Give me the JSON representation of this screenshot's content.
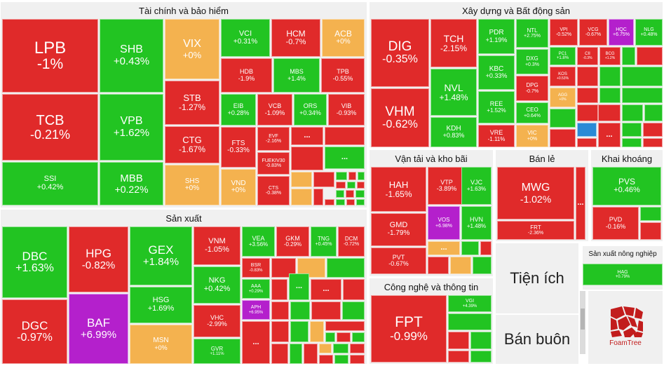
{
  "colors": {
    "up": "#22c422",
    "down": "#e02a2a",
    "reference": "#f4b24f",
    "ceiling": "#b420cc",
    "floor": "#2a8ad6"
  },
  "sectors": {
    "finance": "Tài chính và bảo hiểm",
    "realestate": "Xây dựng và Bất động sản",
    "manufacturing": "Sản xuất",
    "transport": "Vận tải và kho bãi",
    "retail": "Bán lẻ",
    "mining": "Khai khoáng",
    "tech": "Công nghệ và thông tin",
    "utilities": "Tiện ích",
    "wholesale": "Bán buôn",
    "agri": "Sản xuất nông nghiệp"
  },
  "more_label": "...",
  "logo_text": "FoamTree",
  "stocks": {
    "LPB": {
      "t": "LPB",
      "p": "-1%"
    },
    "TCB": {
      "t": "TCB",
      "p": "-0.21%"
    },
    "SSI": {
      "t": "SSI",
      "p": "+0.42%"
    },
    "SHB": {
      "t": "SHB",
      "p": "+0.43%"
    },
    "VPB": {
      "t": "VPB",
      "p": "+1.62%"
    },
    "MBB": {
      "t": "MBB",
      "p": "+0.22%"
    },
    "VIX": {
      "t": "VIX",
      "p": "+0%"
    },
    "STB": {
      "t": "STB",
      "p": "-1.27%"
    },
    "CTG": {
      "t": "CTG",
      "p": "-1.67%"
    },
    "SHS": {
      "t": "SHS",
      "p": "+0%"
    },
    "VCI": {
      "t": "VCI",
      "p": "+0.31%"
    },
    "HCM": {
      "t": "HCM",
      "p": "-0.7%"
    },
    "ACB": {
      "t": "ACB",
      "p": "+0%"
    },
    "HDB": {
      "t": "HDB",
      "p": "-1.9%"
    },
    "MBS": {
      "t": "MBS",
      "p": "+1.4%"
    },
    "TPB": {
      "t": "TPB",
      "p": "-0.55%"
    },
    "EIB": {
      "t": "EIB",
      "p": "+0.28%"
    },
    "VCB": {
      "t": "VCB",
      "p": "-1.09%"
    },
    "ORS": {
      "t": "ORS",
      "p": "+0.34%"
    },
    "VIB": {
      "t": "VIB",
      "p": "-0.93%"
    },
    "FTS": {
      "t": "FTS",
      "p": "-0.33%"
    },
    "EVF": {
      "t": "EVF",
      "p": "-2.16%"
    },
    "FUEKIV30": {
      "t": "FUEKIV30",
      "p": "-0.83%"
    },
    "VND": {
      "t": "VND",
      "p": "+0%"
    },
    "CTS": {
      "t": "CTS",
      "p": "-0.38%"
    },
    "DIG": {
      "t": "DIG",
      "p": "-0.35%"
    },
    "VHM": {
      "t": "VHM",
      "p": "-0.62%"
    },
    "TCH": {
      "t": "TCH",
      "p": "-2.15%"
    },
    "NVL": {
      "t": "NVL",
      "p": "+1.48%"
    },
    "KDH": {
      "t": "KDH",
      "p": "+0.83%"
    },
    "PDR": {
      "t": "PDR",
      "p": "+1.19%"
    },
    "KBC": {
      "t": "KBC",
      "p": "+0.33%"
    },
    "REE": {
      "t": "REE",
      "p": "+1.52%"
    },
    "VRE": {
      "t": "VRE",
      "p": "-1.11%"
    },
    "NTL": {
      "t": "NTL",
      "p": "+2.75%"
    },
    "DXG": {
      "t": "DXG",
      "p": "+0.3%"
    },
    "DPG": {
      "t": "DPG",
      "p": "-0.7%"
    },
    "CEO": {
      "t": "CEO",
      "p": "+0.64%"
    },
    "VIC": {
      "t": "VIC",
      "p": "+0%"
    },
    "VPI": {
      "t": "VPI",
      "p": "-0.52%"
    },
    "VCG": {
      "t": "VCG",
      "p": "-0.67%"
    },
    "HQC": {
      "t": "HQC",
      "p": "+6.75%"
    },
    "NLG": {
      "t": "NLG",
      "p": "+0.48%"
    },
    "PC1": {
      "t": "PC1",
      "p": "+1.8%"
    },
    "CII": {
      "t": "CII",
      "p": "-0.3%"
    },
    "BCG": {
      "t": "BCG",
      "p": "+1.2%"
    },
    "KOS": {
      "t": "KOS",
      "p": "+0.53%"
    },
    "AGG": {
      "t": "AGG",
      "p": "+0%"
    },
    "DBC": {
      "t": "DBC",
      "p": "+1.63%"
    },
    "DGC": {
      "t": "DGC",
      "p": "-0.97%"
    },
    "HPG": {
      "t": "HPG",
      "p": "-0.82%"
    },
    "BAF": {
      "t": "BAF",
      "p": "+6.99%"
    },
    "GEX": {
      "t": "GEX",
      "p": "+1.84%"
    },
    "HSG": {
      "t": "HSG",
      "p": "+1.69%"
    },
    "MSN": {
      "t": "MSN",
      "p": "+0%"
    },
    "VNM": {
      "t": "VNM",
      "p": "-1.05%"
    },
    "NKG": {
      "t": "NKG",
      "p": "+0.42%"
    },
    "VHC": {
      "t": "VHC",
      "p": "-2.99%"
    },
    "GVR": {
      "t": "GVR",
      "p": "+1.11%"
    },
    "VEA": {
      "t": "VEA",
      "p": "+3.56%"
    },
    "GKM": {
      "t": "GKM",
      "p": "-0.29%"
    },
    "TNG": {
      "t": "TNG",
      "p": "+0.45%"
    },
    "DCM": {
      "t": "DCM",
      "p": "-0.72%"
    },
    "BSR": {
      "t": "BSR",
      "p": "-0.83%"
    },
    "AAA": {
      "t": "AAA",
      "p": "+0.29%"
    },
    "APH": {
      "t": "APH",
      "p": "+6.95%"
    },
    "HAH": {
      "t": "HAH",
      "p": "-1.65%"
    },
    "GMD": {
      "t": "GMD",
      "p": "-1.79%"
    },
    "PVT": {
      "t": "PVT",
      "p": "-0.67%"
    },
    "VTP": {
      "t": "VTP",
      "p": "-3.89%"
    },
    "VOS": {
      "t": "VOS",
      "p": "+6.98%"
    },
    "VJC": {
      "t": "VJC",
      "p": "+1.63%"
    },
    "HVN": {
      "t": "HVN",
      "p": "+1.48%"
    },
    "MWG": {
      "t": "MWG",
      "p": "-1.02%"
    },
    "FRT": {
      "t": "FRT",
      "p": "-2.36%"
    },
    "PVS": {
      "t": "PVS",
      "p": "+0.46%"
    },
    "PVD": {
      "t": "PVD",
      "p": "-0.16%"
    },
    "FPT": {
      "t": "FPT",
      "p": "-0.99%"
    },
    "VGI": {
      "t": "VGI",
      "p": "+4.39%"
    },
    "HAG": {
      "t": "HAG",
      "p": "+0.79%"
    }
  }
}
